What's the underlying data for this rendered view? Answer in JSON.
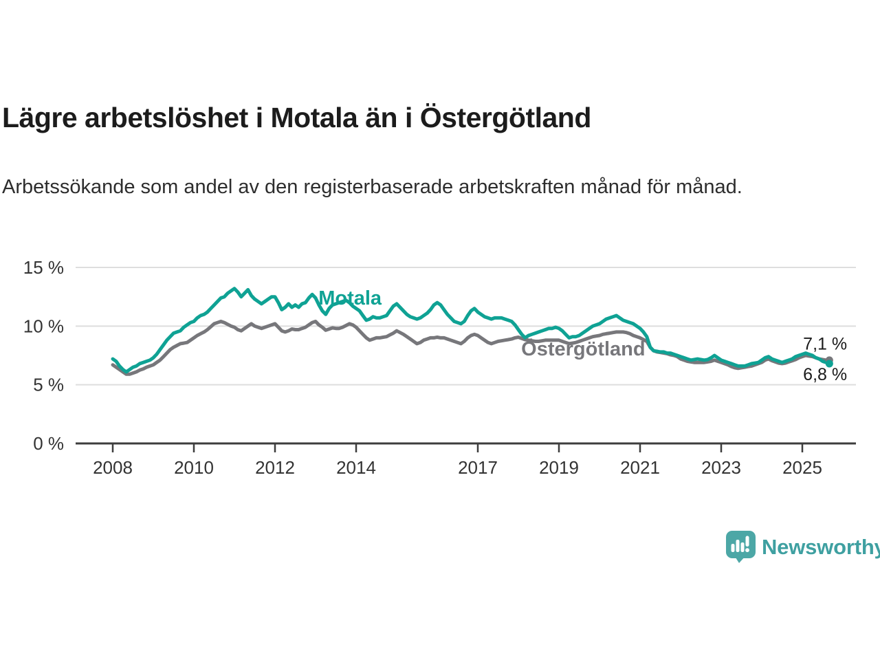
{
  "title": "Lägre arbetslöshet i Motala än i Östergötland",
  "subtitle": "Arbetssökande som andel av den registerbaserade arbetskraften månad för månad.",
  "branding": {
    "logo_icon": "newsworthy-speech-bubble-bar-chart-icon",
    "name": "Newsworthy",
    "icon_color": "#4CA7A6",
    "wordmark_color": "#3FA0A1"
  },
  "chart_data": {
    "type": "line",
    "title": "Lägre arbetslöshet i Motala än i Östergötland",
    "subtitle": "Arbetssökande som andel av den registerbaserade arbetskraften månad för månad.",
    "unit": "%",
    "grid": true,
    "legend_position": "inline-line-labels",
    "style": {
      "grid_color": "#dedede",
      "axis_color": "#3d3d3d",
      "tick_text_color": "#333333",
      "end_label_color": "#1a1a1a"
    },
    "x_axis": {
      "range": [
        2007.08,
        2026.32
      ],
      "ticks": [
        {
          "value": 2008,
          "label": "2008"
        },
        {
          "value": 2010,
          "label": "2010"
        },
        {
          "value": 2012,
          "label": "2012"
        },
        {
          "value": 2014,
          "label": "2014"
        },
        {
          "value": 2017,
          "label": "2017"
        },
        {
          "value": 2019,
          "label": "2019"
        },
        {
          "value": 2021,
          "label": "2021"
        },
        {
          "value": 2023,
          "label": "2023"
        },
        {
          "value": 2025,
          "label": "2025"
        }
      ]
    },
    "y_axis": {
      "range": [
        0,
        15
      ],
      "ticks": [
        {
          "value": 0,
          "label": "0 %"
        },
        {
          "value": 5,
          "label": "5 %"
        },
        {
          "value": 10,
          "label": "10 %"
        },
        {
          "value": 15,
          "label": "15 %"
        }
      ]
    },
    "series": [
      {
        "name": "Motala",
        "data_name": "motala",
        "color": "#0FA294",
        "start_year": 2008,
        "points_per_year": 12,
        "line_label": {
          "text": "Motala",
          "x_year": 2013.85,
          "y_value": 11.84,
          "anchor": "middle"
        },
        "end_label": {
          "text": "6,8 %",
          "x_year": 2025.02,
          "y_value": 5.4
        },
        "last_value": 6.8,
        "values": [
          7.2,
          7.0,
          6.6,
          6.3,
          6.1,
          6.3,
          6.5,
          6.6,
          6.8,
          6.9,
          7.0,
          7.1,
          7.3,
          7.6,
          8.0,
          8.4,
          8.8,
          9.1,
          9.4,
          9.5,
          9.6,
          9.9,
          10.1,
          10.3,
          10.4,
          10.7,
          10.9,
          11.0,
          11.2,
          11.5,
          11.8,
          12.1,
          12.4,
          12.5,
          12.8,
          13.0,
          13.2,
          12.9,
          12.5,
          12.8,
          13.1,
          12.6,
          12.3,
          12.1,
          11.9,
          12.1,
          12.3,
          12.5,
          12.5,
          12.0,
          11.4,
          11.6,
          11.9,
          11.6,
          11.8,
          11.6,
          11.9,
          12.0,
          12.4,
          12.7,
          12.4,
          11.8,
          11.3,
          11.0,
          11.5,
          11.8,
          11.9,
          12.0,
          12.1,
          12.2,
          12.0,
          11.7,
          11.5,
          11.3,
          10.9,
          10.5,
          10.6,
          10.8,
          10.7,
          10.7,
          10.8,
          10.9,
          11.3,
          11.7,
          11.9,
          11.6,
          11.3,
          11.0,
          10.8,
          10.7,
          10.6,
          10.7,
          10.9,
          11.1,
          11.4,
          11.8,
          12.0,
          11.8,
          11.4,
          11.0,
          10.7,
          10.4,
          10.3,
          10.2,
          10.4,
          10.9,
          11.3,
          11.5,
          11.2,
          11.0,
          10.8,
          10.7,
          10.6,
          10.7,
          10.7,
          10.7,
          10.6,
          10.5,
          10.4,
          10.1,
          9.7,
          9.3,
          9.0,
          9.2,
          9.3,
          9.4,
          9.5,
          9.6,
          9.7,
          9.8,
          9.8,
          9.9,
          9.8,
          9.6,
          9.3,
          9.0,
          9.1,
          9.1,
          9.2,
          9.4,
          9.6,
          9.8,
          10.0,
          10.1,
          10.2,
          10.4,
          10.6,
          10.7,
          10.8,
          10.9,
          10.7,
          10.5,
          10.4,
          10.3,
          10.2,
          10.0,
          9.8,
          9.5,
          9.1,
          8.2,
          7.9,
          7.85,
          7.8,
          7.8,
          7.7,
          7.7,
          7.6,
          7.5,
          7.4,
          7.3,
          7.2,
          7.1,
          7.15,
          7.2,
          7.15,
          7.1,
          7.15,
          7.3,
          7.5,
          7.3,
          7.1,
          7.0,
          6.9,
          6.8,
          6.7,
          6.6,
          6.6,
          6.6,
          6.7,
          6.8,
          6.85,
          6.9,
          7.1,
          7.3,
          7.4,
          7.2,
          7.1,
          7.0,
          6.9,
          7.0,
          7.1,
          7.2,
          7.4,
          7.5,
          7.6,
          7.7,
          7.6,
          7.5,
          7.3,
          7.2,
          7.0,
          6.9,
          6.8
        ]
      },
      {
        "name": "Östergötland",
        "data_name": "ostergotland",
        "color": "#77777B",
        "start_year": 2008,
        "points_per_year": 12,
        "line_label": {
          "text": "Östergötland",
          "x_year": 2019.6,
          "y_value": 7.5,
          "anchor": "middle"
        },
        "end_label": {
          "text": "7,1 %",
          "x_year": 2025.02,
          "y_value": 8.0
        },
        "last_value": 7.1,
        "values": [
          6.7,
          6.5,
          6.3,
          6.1,
          5.9,
          5.9,
          6.0,
          6.1,
          6.25,
          6.35,
          6.5,
          6.6,
          6.7,
          6.9,
          7.1,
          7.4,
          7.7,
          8.0,
          8.2,
          8.35,
          8.5,
          8.55,
          8.6,
          8.8,
          9.0,
          9.2,
          9.35,
          9.5,
          9.7,
          9.95,
          10.2,
          10.3,
          10.4,
          10.3,
          10.15,
          10.0,
          9.9,
          9.7,
          9.6,
          9.8,
          10.0,
          10.2,
          10.0,
          9.9,
          9.8,
          9.9,
          10.0,
          10.1,
          10.2,
          9.9,
          9.6,
          9.5,
          9.6,
          9.75,
          9.7,
          9.7,
          9.8,
          9.9,
          10.1,
          10.3,
          10.4,
          10.1,
          9.9,
          9.65,
          9.75,
          9.85,
          9.8,
          9.8,
          9.9,
          10.05,
          10.2,
          10.1,
          9.9,
          9.6,
          9.3,
          9.0,
          8.8,
          8.9,
          9.0,
          9.0,
          9.05,
          9.1,
          9.25,
          9.4,
          9.6,
          9.45,
          9.3,
          9.1,
          8.9,
          8.7,
          8.5,
          8.6,
          8.8,
          8.9,
          9.0,
          9.0,
          9.05,
          9.0,
          9.0,
          8.9,
          8.8,
          8.7,
          8.6,
          8.5,
          8.7,
          9.0,
          9.2,
          9.3,
          9.2,
          9.0,
          8.8,
          8.6,
          8.5,
          8.6,
          8.7,
          8.75,
          8.8,
          8.85,
          8.9,
          9.0,
          9.05,
          8.95,
          8.85,
          8.8,
          8.75,
          8.7,
          8.7,
          8.75,
          8.8,
          8.8,
          8.8,
          8.8,
          8.8,
          8.7,
          8.6,
          8.5,
          8.55,
          8.6,
          8.7,
          8.8,
          8.9,
          9.0,
          9.1,
          9.15,
          9.2,
          9.3,
          9.35,
          9.4,
          9.45,
          9.5,
          9.5,
          9.5,
          9.45,
          9.35,
          9.2,
          9.1,
          9.0,
          8.85,
          8.7,
          8.2,
          7.9,
          7.8,
          7.75,
          7.7,
          7.65,
          7.55,
          7.5,
          7.4,
          7.2,
          7.1,
          7.0,
          6.95,
          6.9,
          6.9,
          6.9,
          6.9,
          6.95,
          7.0,
          7.1,
          7.0,
          6.9,
          6.8,
          6.7,
          6.55,
          6.45,
          6.4,
          6.45,
          6.5,
          6.55,
          6.6,
          6.7,
          6.8,
          6.9,
          7.1,
          7.2,
          7.05,
          6.95,
          6.85,
          6.8,
          6.85,
          6.95,
          7.05,
          7.15,
          7.3,
          7.4,
          7.5,
          7.45,
          7.4,
          7.3,
          7.2,
          7.15,
          7.1,
          7.1
        ]
      }
    ]
  }
}
